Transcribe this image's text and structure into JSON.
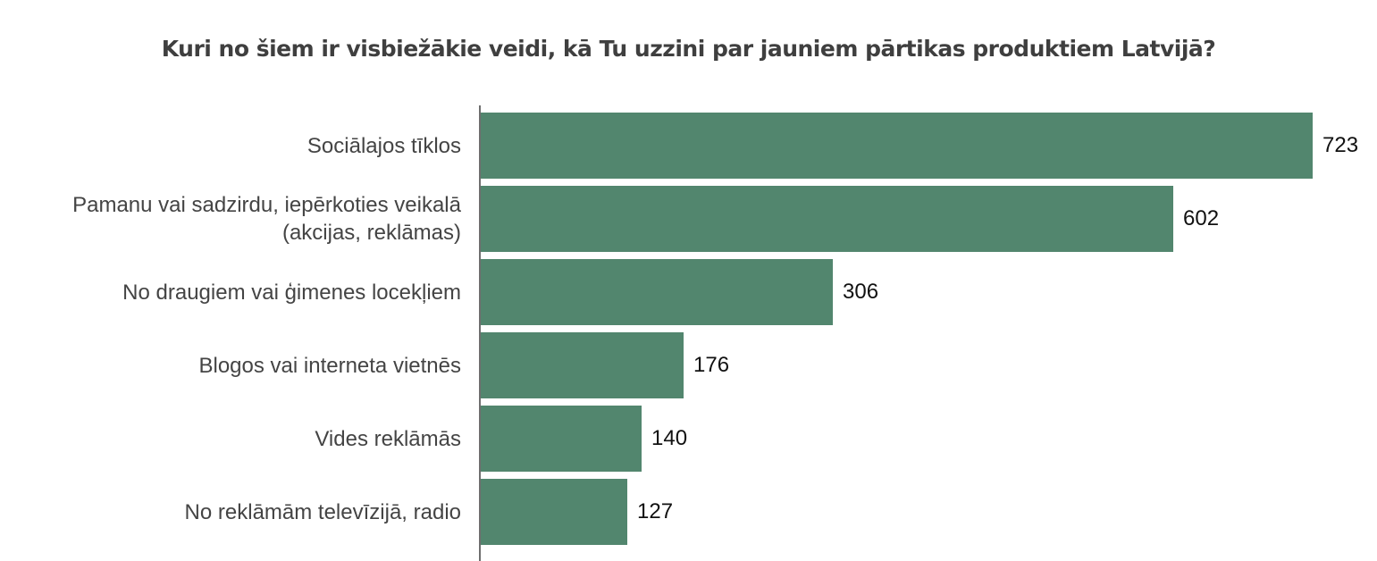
{
  "chart_data": {
    "type": "bar",
    "orientation": "horizontal",
    "title": "Kuri no šiem ir visbiežākie veidi, kā Tu uzzini par jauniem pārtikas produktiem Latvijā?",
    "xlabel": "",
    "ylabel": "",
    "categories": [
      "Sociālajos tīklos",
      "Pamanu vai sadzirdu, iepērkoties veikalā (akcijas, reklāmas)",
      "No draugiem vai ģimenes locekļiem",
      "Blogos vai interneta vietnēs",
      "Vides reklāmās",
      "No reklāmām televīzijā, radio"
    ],
    "values": [
      723,
      602,
      306,
      176,
      140,
      127
    ],
    "data_labels": [
      "723",
      "602",
      "306",
      "176",
      "140",
      "127"
    ],
    "xlim": [
      0,
      723
    ],
    "grid": false,
    "legend": null,
    "bar_color": "#52866e"
  },
  "rows": [
    {
      "label": "Sociālajos tīklos",
      "value": "723",
      "num": 723
    },
    {
      "label": "Pamanu vai sadzirdu, iepērkoties veikalā (akcijas, reklāmas)",
      "value": "602",
      "num": 602
    },
    {
      "label": "No draugiem vai ģimenes locekļiem",
      "value": "306",
      "num": 306
    },
    {
      "label": "Blogos vai interneta vietnēs",
      "value": "176",
      "num": 176
    },
    {
      "label": "Vides reklāmās",
      "value": "140",
      "num": 140
    },
    {
      "label": "No reklāmām televīzijā, radio",
      "value": "127",
      "num": 127
    }
  ]
}
